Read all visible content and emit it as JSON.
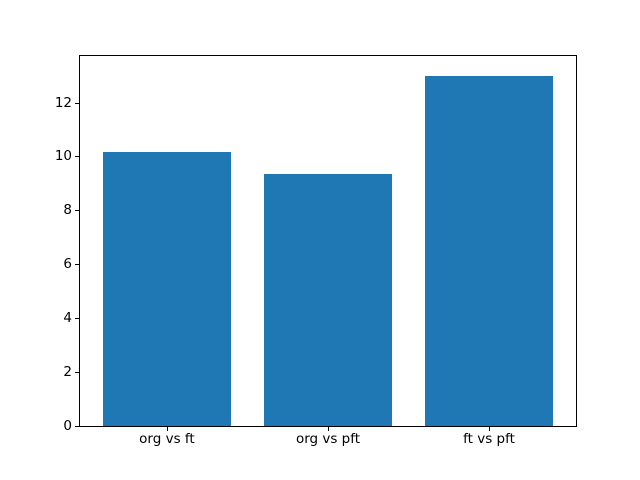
{
  "figure": {
    "background": "#ffffff"
  },
  "chart_data": {
    "type": "bar",
    "title": "",
    "xlabel": "",
    "ylabel": "",
    "categories": [
      "org vs ft",
      "org vs pft",
      "ft vs pft"
    ],
    "x": [
      0,
      1,
      2
    ],
    "values": [
      10.2,
      9.35,
      13.0
    ],
    "bar_color": "#1f77b4",
    "bar_width": 0.8,
    "xlim": [
      -0.54,
      2.54
    ],
    "ylim": [
      0,
      13.75
    ],
    "yticks": [
      0,
      2,
      4,
      6,
      8,
      10,
      12
    ],
    "grid": false,
    "legend": null,
    "frame_color": "#000000",
    "tick_label_color": "#000000"
  }
}
